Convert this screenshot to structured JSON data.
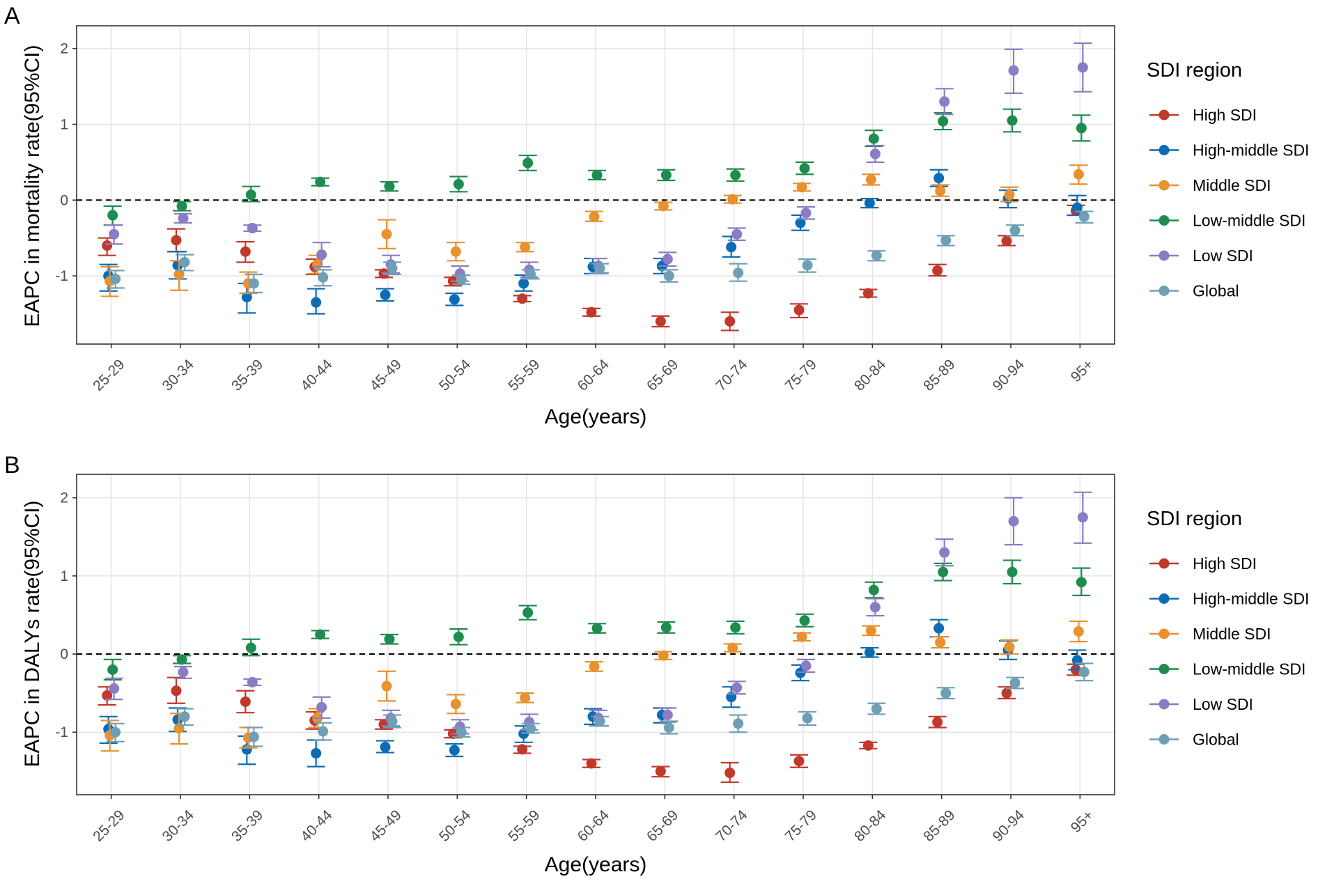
{
  "chart_data": [
    {
      "type": "scatter",
      "panel_label": "A",
      "xlabel": "Age(years)",
      "ylabel": "EAPC in mortality rate(95%CI)",
      "ylim": [
        -1.9,
        2.3
      ],
      "yticks": [
        -1,
        0,
        1,
        2
      ],
      "reference_line": 0,
      "categories": [
        "25-29",
        "30-34",
        "35-39",
        "40-44",
        "45-49",
        "50-54",
        "55-59",
        "60-64",
        "65-69",
        "70-74",
        "75-79",
        "80-84",
        "85-89",
        "90-94",
        "95+"
      ],
      "legend": {
        "title": "SDI region",
        "position": "right"
      },
      "series": [
        {
          "name": "High SDI",
          "color": "#C0392B",
          "values": [
            -0.6,
            -0.53,
            -0.68,
            -0.88,
            -0.97,
            -1.07,
            -1.3,
            -1.48,
            -1.6,
            -1.6,
            -1.45,
            -1.23,
            -0.93,
            -0.54,
            -0.14
          ],
          "lower": [
            -0.73,
            -0.68,
            -0.82,
            -0.98,
            -1.02,
            -1.13,
            -1.34,
            -1.53,
            -1.67,
            -1.72,
            -1.55,
            -1.28,
            -1.0,
            -0.6,
            -0.2
          ],
          "upper": [
            -0.5,
            -0.38,
            -0.55,
            -0.78,
            -0.92,
            -1.02,
            -1.26,
            -1.43,
            -1.53,
            -1.48,
            -1.37,
            -1.18,
            -0.85,
            -0.47,
            -0.07
          ]
        },
        {
          "name": "High-middle SDI",
          "color": "#0B6CB5",
          "values": [
            -1.0,
            -0.86,
            -1.28,
            -1.35,
            -1.25,
            -1.31,
            -1.1,
            -0.88,
            -0.87,
            -0.62,
            -0.3,
            -0.04,
            0.29,
            0.02,
            -0.1
          ],
          "lower": [
            -1.2,
            -1.04,
            -1.49,
            -1.5,
            -1.33,
            -1.39,
            -1.2,
            -0.97,
            -0.97,
            -0.75,
            -0.4,
            -0.1,
            0.18,
            -0.1,
            -0.2
          ],
          "upper": [
            -0.85,
            -0.68,
            -1.1,
            -1.17,
            -1.17,
            -1.23,
            -0.99,
            -0.77,
            -0.77,
            -0.48,
            -0.2,
            0.02,
            0.4,
            0.13,
            0.06
          ]
        },
        {
          "name": "Middle SDI",
          "color": "#E8912F",
          "values": [
            -1.07,
            -0.98,
            -1.1,
            -0.85,
            -0.45,
            -0.68,
            -0.62,
            -0.22,
            -0.08,
            0.01,
            0.17,
            0.27,
            0.12,
            0.07,
            0.34
          ],
          "lower": [
            -1.27,
            -1.19,
            -1.23,
            -0.97,
            -0.64,
            -0.8,
            -0.68,
            -0.28,
            -0.13,
            -0.04,
            0.12,
            0.2,
            0.05,
            -0.02,
            0.21
          ],
          "upper": [
            -0.88,
            -0.8,
            -0.95,
            -0.73,
            -0.26,
            -0.56,
            -0.56,
            -0.15,
            -0.03,
            0.06,
            0.22,
            0.34,
            0.2,
            0.17,
            0.46
          ]
        },
        {
          "name": "Low-middle SDI",
          "color": "#1E8C4E",
          "values": [
            -0.2,
            -0.08,
            0.07,
            0.24,
            0.18,
            0.21,
            0.49,
            0.33,
            0.33,
            0.33,
            0.42,
            0.81,
            1.04,
            1.05,
            0.95
          ],
          "lower": [
            -0.33,
            -0.14,
            -0.02,
            0.19,
            0.12,
            0.11,
            0.39,
            0.27,
            0.26,
            0.25,
            0.34,
            0.71,
            0.93,
            0.9,
            0.78
          ],
          "upper": [
            -0.08,
            -0.02,
            0.18,
            0.29,
            0.24,
            0.31,
            0.59,
            0.39,
            0.4,
            0.41,
            0.5,
            0.92,
            1.15,
            1.2,
            1.12
          ]
        },
        {
          "name": "Low SDI",
          "color": "#8B7CC4",
          "values": [
            -0.45,
            -0.24,
            -0.37,
            -0.72,
            -0.85,
            -0.97,
            -0.92,
            -0.87,
            -0.78,
            -0.45,
            -0.17,
            0.61,
            1.3,
            1.71,
            1.75
          ],
          "lower": [
            -0.58,
            -0.3,
            -0.41,
            -0.88,
            -0.96,
            -1.07,
            -1.02,
            -0.97,
            -0.87,
            -0.53,
            -0.25,
            0.5,
            1.13,
            1.41,
            1.43
          ],
          "upper": [
            -0.33,
            -0.18,
            -0.33,
            -0.56,
            -0.73,
            -0.87,
            -0.82,
            -0.77,
            -0.69,
            -0.37,
            -0.09,
            0.72,
            1.47,
            1.99,
            2.07
          ]
        },
        {
          "name": "Global",
          "color": "#6E9FB5",
          "values": [
            -1.04,
            -0.82,
            -1.1,
            -1.02,
            -0.9,
            -1.05,
            -0.98,
            -0.9,
            -1.0,
            -0.96,
            -0.86,
            -0.73,
            -0.53,
            -0.4,
            -0.22
          ],
          "lower": [
            -1.16,
            -0.93,
            -1.22,
            -1.13,
            -0.98,
            -1.11,
            -1.04,
            -0.96,
            -1.08,
            -1.07,
            -0.95,
            -0.8,
            -0.6,
            -0.47,
            -0.3
          ],
          "upper": [
            -0.93,
            -0.72,
            -0.98,
            -0.92,
            -0.82,
            -0.99,
            -0.92,
            -0.84,
            -0.92,
            -0.84,
            -0.78,
            -0.67,
            -0.47,
            -0.33,
            -0.15
          ]
        }
      ]
    },
    {
      "type": "scatter",
      "panel_label": "B",
      "xlabel": "Age(years)",
      "ylabel": "EAPC in DALYs rate(95%CI)",
      "ylim": [
        -1.8,
        2.3
      ],
      "yticks": [
        -1,
        0,
        1,
        2
      ],
      "reference_line": 0,
      "categories": [
        "25-29",
        "30-34",
        "35-39",
        "40-44",
        "45-49",
        "50-54",
        "55-59",
        "60-64",
        "65-69",
        "70-74",
        "75-79",
        "80-84",
        "85-89",
        "90-94",
        "95+"
      ],
      "legend": {
        "title": "SDI region",
        "position": "right"
      },
      "series": [
        {
          "name": "High SDI",
          "color": "#C0392B",
          "values": [
            -0.53,
            -0.47,
            -0.61,
            -0.85,
            -0.9,
            -1.02,
            -1.22,
            -1.4,
            -1.5,
            -1.52,
            -1.37,
            -1.17,
            -0.87,
            -0.5,
            -0.2
          ],
          "lower": [
            -0.65,
            -0.63,
            -0.75,
            -0.96,
            -0.96,
            -1.07,
            -1.27,
            -1.45,
            -1.57,
            -1.64,
            -1.45,
            -1.21,
            -0.94,
            -0.57,
            -0.27
          ],
          "upper": [
            -0.42,
            -0.3,
            -0.47,
            -0.74,
            -0.84,
            -0.97,
            -1.18,
            -1.35,
            -1.44,
            -1.39,
            -1.29,
            -1.13,
            -0.8,
            -0.42,
            -0.13
          ]
        },
        {
          "name": "High-middle SDI",
          "color": "#0B6CB5",
          "values": [
            -0.96,
            -0.84,
            -1.22,
            -1.27,
            -1.19,
            -1.23,
            -1.02,
            -0.8,
            -0.78,
            -0.55,
            -0.24,
            0.02,
            0.33,
            0.05,
            -0.08
          ],
          "lower": [
            -1.14,
            -0.99,
            -1.41,
            -1.44,
            -1.26,
            -1.31,
            -1.13,
            -0.9,
            -0.88,
            -0.68,
            -0.34,
            -0.04,
            0.22,
            -0.07,
            -0.2
          ],
          "upper": [
            -0.8,
            -0.69,
            -1.05,
            -1.1,
            -1.11,
            -1.15,
            -0.92,
            -0.7,
            -0.69,
            -0.42,
            -0.14,
            0.08,
            0.44,
            0.17,
            0.05
          ]
        },
        {
          "name": "Middle SDI",
          "color": "#E8912F",
          "values": [
            -1.04,
            -0.95,
            -1.07,
            -0.82,
            -0.41,
            -0.64,
            -0.56,
            -0.16,
            -0.02,
            0.08,
            0.22,
            0.3,
            0.15,
            0.09,
            0.29
          ],
          "lower": [
            -1.24,
            -1.15,
            -1.2,
            -0.94,
            -0.6,
            -0.76,
            -0.62,
            -0.22,
            -0.07,
            0.03,
            0.17,
            0.24,
            0.08,
            0.0,
            0.16
          ],
          "upper": [
            -0.85,
            -0.76,
            -0.94,
            -0.7,
            -0.22,
            -0.52,
            -0.5,
            -0.1,
            0.03,
            0.13,
            0.27,
            0.36,
            0.22,
            0.18,
            0.42
          ]
        },
        {
          "name": "Low-middle SDI",
          "color": "#1E8C4E",
          "values": [
            -0.2,
            -0.07,
            0.08,
            0.25,
            0.19,
            0.22,
            0.53,
            0.33,
            0.34,
            0.34,
            0.43,
            0.82,
            1.05,
            1.05,
            0.92
          ],
          "lower": [
            -0.33,
            -0.12,
            -0.02,
            0.2,
            0.13,
            0.12,
            0.44,
            0.27,
            0.27,
            0.26,
            0.35,
            0.72,
            0.94,
            0.9,
            0.75
          ],
          "upper": [
            -0.07,
            -0.02,
            0.19,
            0.3,
            0.25,
            0.32,
            0.62,
            0.39,
            0.41,
            0.42,
            0.51,
            0.92,
            1.16,
            1.2,
            1.1
          ]
        },
        {
          "name": "Low SDI",
          "color": "#8B7CC4",
          "values": [
            -0.44,
            -0.23,
            -0.36,
            -0.68,
            -0.82,
            -0.93,
            -0.87,
            -0.82,
            -0.78,
            -0.43,
            -0.15,
            0.6,
            1.3,
            1.7,
            1.75
          ],
          "lower": [
            -0.58,
            -0.31,
            -0.4,
            -0.82,
            -0.92,
            -1.02,
            -0.97,
            -0.92,
            -0.87,
            -0.51,
            -0.23,
            0.49,
            1.13,
            1.4,
            1.42
          ],
          "upper": [
            -0.31,
            -0.16,
            -0.32,
            -0.55,
            -0.72,
            -0.84,
            -0.77,
            -0.72,
            -0.69,
            -0.35,
            -0.07,
            0.71,
            1.47,
            2.0,
            2.07
          ]
        },
        {
          "name": "Global",
          "color": "#6E9FB5",
          "values": [
            -1.0,
            -0.8,
            -1.06,
            -0.99,
            -0.86,
            -1.0,
            -0.95,
            -0.86,
            -0.94,
            -0.89,
            -0.82,
            -0.7,
            -0.5,
            -0.37,
            -0.23
          ],
          "lower": [
            -1.12,
            -0.91,
            -1.18,
            -1.1,
            -0.94,
            -1.06,
            -1.01,
            -0.92,
            -1.02,
            -1.0,
            -0.91,
            -0.77,
            -0.57,
            -0.44,
            -0.34
          ],
          "upper": [
            -0.89,
            -0.7,
            -0.94,
            -0.88,
            -0.78,
            -0.94,
            -0.89,
            -0.8,
            -0.86,
            -0.78,
            -0.74,
            -0.63,
            -0.43,
            -0.3,
            -0.12
          ]
        }
      ]
    }
  ]
}
